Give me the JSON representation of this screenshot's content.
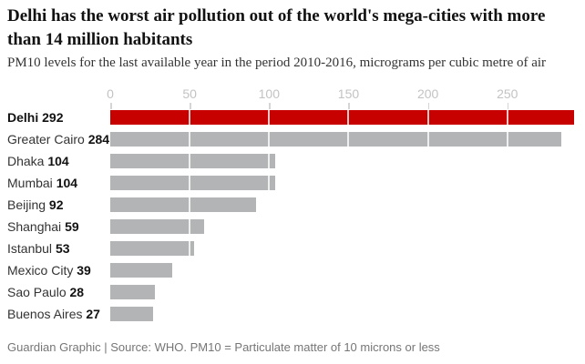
{
  "header": {
    "title": "Delhi has the worst air pollution out of the world's mega-cities with more than 14 million habitants",
    "subtitle": "PM10 levels for the last available year in the period 2010-2016, micrograms per cubic metre of air"
  },
  "footer": {
    "source": "Guardian Graphic | Source: WHO. PM10 = Particulate matter of 10 microns or less"
  },
  "chart_data": {
    "type": "bar",
    "orientation": "horizontal",
    "title": "Delhi has the worst air pollution out of the world's mega-cities with more than 14 million habitants",
    "subtitle": "PM10 levels for the last available year in the period 2010-2016, micrograms per cubic metre of air",
    "categories": [
      "Delhi",
      "Greater Cairo",
      "Dhaka",
      "Mumbai",
      "Beijing",
      "Shanghai",
      "Istanbul",
      "Mexico City",
      "Sao Paulo",
      "Buenos Aires"
    ],
    "values": [
      292,
      284,
      104,
      104,
      92,
      59,
      53,
      39,
      28,
      27
    ],
    "highlight_category": "Delhi",
    "xlabel": "",
    "ylabel": "",
    "xlim": [
      0,
      292
    ],
    "xticks": [
      0,
      50,
      100,
      150,
      200,
      250
    ],
    "grid": "white vertical gridlines over bars at each tick",
    "legend": "none",
    "value_labels": "inline after category name, bold",
    "colors": {
      "highlight_bar": "#c70000",
      "bar": "#b3b4b6",
      "title_text": "#121212",
      "subtitle_text": "#333333",
      "axis_tick_text": "#c3c3c3",
      "source_text": "#767676"
    }
  }
}
